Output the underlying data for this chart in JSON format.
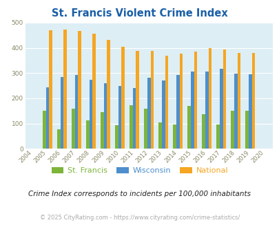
{
  "title": "St. Francis Violent Crime Index",
  "years": [
    2004,
    2005,
    2006,
    2007,
    2008,
    2009,
    2010,
    2011,
    2012,
    2013,
    2014,
    2015,
    2016,
    2017,
    2018,
    2019,
    2020
  ],
  "st_francis": [
    0,
    150,
    77,
    160,
    111,
    145,
    94,
    173,
    160,
    105,
    97,
    171,
    138,
    97,
    150,
    150,
    0
  ],
  "wisconsin": [
    0,
    243,
    284,
    293,
    273,
    260,
    250,
    240,
    281,
    270,
    293,
    306,
    306,
    318,
    299,
    294,
    0
  ],
  "national": [
    0,
    469,
    474,
    467,
    455,
    432,
    405,
    388,
    387,
    368,
    377,
    384,
    398,
    394,
    381,
    380,
    0
  ],
  "bar_width": 0.22,
  "colors": {
    "st_francis": "#7db53a",
    "wisconsin": "#4d8fcc",
    "national": "#f5a623"
  },
  "ylim": [
    0,
    500
  ],
  "yticks": [
    0,
    100,
    200,
    300,
    400,
    500
  ],
  "bg_color": "#ddeef5",
  "grid_color": "#ffffff",
  "title_color": "#1a5fa8",
  "footer_text": "Crime Index corresponds to incidents per 100,000 inhabitants",
  "copyright_text": "© 2025 CityRating.com - https://www.cityrating.com/crime-statistics/",
  "legend_labels": [
    "St. Francis",
    "Wisconsin",
    "National"
  ]
}
